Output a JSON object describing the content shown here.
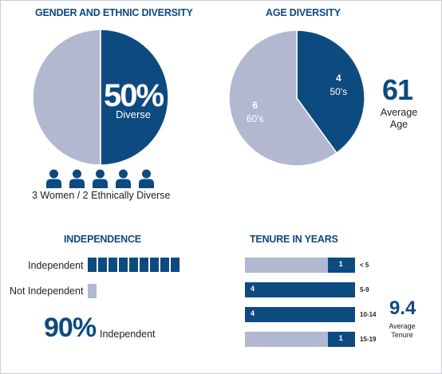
{
  "gender": {
    "title": "GENDER AND ETHNIC DIVERSITY",
    "big_value": "50%",
    "big_caption": "Diverse",
    "people_count": 5,
    "caption": "3 Women / 2 Ethnically Diverse",
    "colors": {
      "dark": "#0d4a80",
      "light": "#b1b8cf"
    }
  },
  "age": {
    "title": "AGE DIVERSITY",
    "average": "61",
    "average_label": "Average\nAge"
  },
  "independence": {
    "title": "INDEPENDENCE",
    "row1_label": "Independent",
    "row2_label": "Not Independent",
    "big_value": "90%",
    "big_caption": "Independent",
    "independent_segments": 9,
    "not_independent_segments": 1
  },
  "tenure": {
    "title": "TENURE IN YEARS",
    "average": "9.4",
    "average_label": "Average\nTenure"
  },
  "chart_data": [
    {
      "type": "pie",
      "title": "GENDER AND ETHNIC DIVERSITY",
      "slices": [
        {
          "label": "Diverse",
          "value": 50,
          "color": "#0d4a80"
        },
        {
          "label": "",
          "value": 50,
          "color": "#b1b8cf"
        }
      ]
    },
    {
      "type": "pie",
      "title": "AGE DIVERSITY",
      "slices": [
        {
          "label": "50's",
          "value": 4,
          "color": "#0d4a80"
        },
        {
          "label": "60's",
          "value": 6,
          "color": "#b1b8cf"
        }
      ]
    },
    {
      "type": "bar",
      "title": "INDEPENDENCE",
      "categories": [
        "Independent",
        "Not Independent"
      ],
      "values": [
        9,
        1
      ],
      "colors": [
        "#0d4a80",
        "#b1b8cf"
      ]
    },
    {
      "type": "bar",
      "title": "TENURE IN YEARS",
      "categories": [
        "< 5",
        "5-9",
        "10-14",
        "15-19"
      ],
      "values": [
        1,
        4,
        4,
        1
      ],
      "max": 4,
      "colors": {
        "dark": "#0d4a80",
        "light": "#b1b8cf"
      }
    }
  ]
}
